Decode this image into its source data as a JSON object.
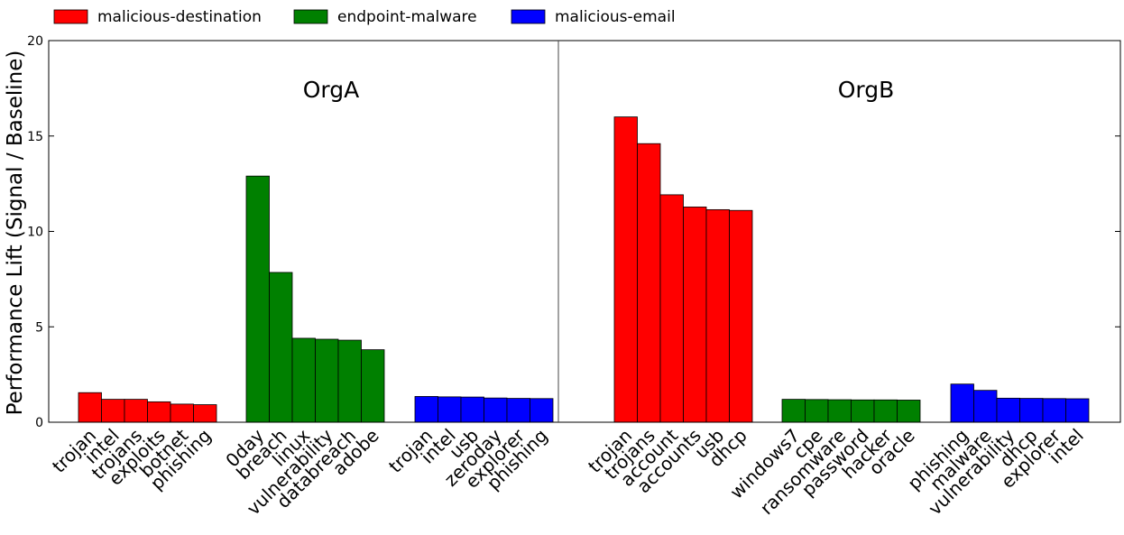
{
  "chart_data": {
    "type": "bar",
    "ylabel": "Performance Lift (Signal / Baseline)",
    "ylim": [
      0,
      20
    ],
    "yticks": [
      0,
      5,
      10,
      15,
      20
    ],
    "legend": {
      "placement": "top-left",
      "entries": [
        {
          "name": "malicious-destination",
          "color": "#ff0000"
        },
        {
          "name": "endpoint-malware",
          "color": "#008000"
        },
        {
          "name": "malicious-email",
          "color": "#0000ff"
        }
      ]
    },
    "panels": [
      {
        "title": "OrgA",
        "groups": [
          {
            "series": "malicious-destination",
            "color": "#ff0000",
            "categories": [
              "trojan",
              "intel",
              "trojans",
              "exploits",
              "botnet",
              "phishing"
            ],
            "values": [
              1.55,
              1.2,
              1.2,
              1.07,
              0.95,
              0.92
            ]
          },
          {
            "series": "endpoint-malware",
            "color": "#008000",
            "categories": [
              "0day",
              "breach",
              "linux",
              "vulnerability",
              "databreach",
              "adobe"
            ],
            "values": [
              12.9,
              7.85,
              4.4,
              4.35,
              4.3,
              3.8
            ]
          },
          {
            "series": "malicious-email",
            "color": "#0000ff",
            "categories": [
              "trojan",
              "intel",
              "usb",
              "zeroday",
              "explorer",
              "phishing"
            ],
            "values": [
              1.35,
              1.33,
              1.32,
              1.27,
              1.25,
              1.24
            ]
          }
        ]
      },
      {
        "title": "OrgB",
        "groups": [
          {
            "series": "malicious-destination",
            "color": "#ff0000",
            "categories": [
              "trojan",
              "trojans",
              "account",
              "accounts",
              "usb",
              "dhcp"
            ],
            "values": [
              16.0,
              14.6,
              11.92,
              11.28,
              11.14,
              11.1
            ]
          },
          {
            "series": "endpoint-malware",
            "color": "#008000",
            "categories": [
              "windows7",
              "cpe",
              "ransomware",
              "password",
              "hacker",
              "oracle"
            ],
            "values": [
              1.2,
              1.19,
              1.18,
              1.17,
              1.17,
              1.16
            ]
          },
          {
            "series": "malicious-email",
            "color": "#0000ff",
            "categories": [
              "phishing",
              "malware",
              "vulnerability",
              "dhcp",
              "explorer",
              "intel"
            ],
            "values": [
              2.0,
              1.67,
              1.26,
              1.25,
              1.24,
              1.23
            ]
          }
        ]
      }
    ]
  }
}
